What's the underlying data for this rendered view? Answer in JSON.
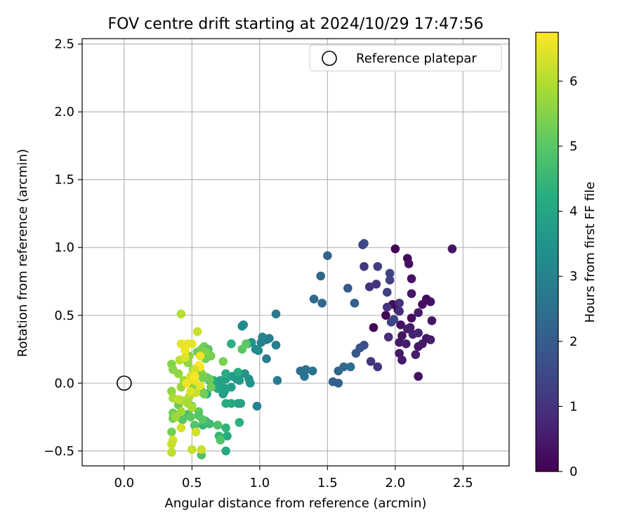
{
  "chart_data": {
    "type": "scatter",
    "title": "FOV centre drift starting at 2024/10/29 17:47:56",
    "xlabel": "Angular distance from reference (arcmin)",
    "ylabel": "Rotation from reference (arcmin)",
    "xlim": [
      -0.31,
      2.84
    ],
    "ylim": [
      -0.61,
      2.54
    ],
    "xticks": [
      0.0,
      0.5,
      1.0,
      1.5,
      2.0,
      2.5
    ],
    "xtick_labels": [
      "0.0",
      "0.5",
      "1.0",
      "1.5",
      "2.0",
      "2.5"
    ],
    "yticks": [
      -0.5,
      0.0,
      0.5,
      1.0,
      1.5,
      2.0,
      2.5
    ],
    "ytick_labels": [
      "−0.5",
      "0.0",
      "0.5",
      "1.0",
      "1.5",
      "2.0",
      "2.5"
    ],
    "grid": true,
    "legend": {
      "placement": "upper right",
      "entries": [
        "Reference platepar"
      ]
    },
    "reference_point": {
      "label": "Reference platepar",
      "x": 0.0,
      "y": 0.0
    },
    "colorbar": {
      "label": "Hours from first FF file",
      "colormap": "viridis",
      "range": [
        0,
        6.75
      ],
      "ticks": [
        0,
        1,
        2,
        3,
        4,
        5,
        6
      ],
      "tick_labels": [
        "0",
        "1",
        "2",
        "3",
        "4",
        "5",
        "6"
      ],
      "colors": [
        "#440154",
        "#472c7a",
        "#3b518b",
        "#2c718e",
        "#21908d",
        "#27ad81",
        "#5cc863",
        "#aadc32",
        "#fde725"
      ]
    },
    "points": [
      {
        "x": 2.0,
        "y": 0.99,
        "h": 0.05
      },
      {
        "x": 2.09,
        "y": 0.92,
        "h": 0.15
      },
      {
        "x": 2.1,
        "y": 0.88,
        "h": 0.25
      },
      {
        "x": 2.12,
        "y": 0.77,
        "h": 0.3
      },
      {
        "x": 2.42,
        "y": 0.99,
        "h": 0.4
      },
      {
        "x": 2.12,
        "y": 0.66,
        "h": 0.45
      },
      {
        "x": 1.98,
        "y": 0.58,
        "h": 0.2
      },
      {
        "x": 2.02,
        "y": 0.54,
        "h": 0.1
      },
      {
        "x": 2.2,
        "y": 0.58,
        "h": 0.3
      },
      {
        "x": 2.26,
        "y": 0.6,
        "h": 0.35
      },
      {
        "x": 2.23,
        "y": 0.62,
        "h": 0.25
      },
      {
        "x": 2.17,
        "y": 0.52,
        "h": 0.5
      },
      {
        "x": 2.27,
        "y": 0.46,
        "h": 0.4
      },
      {
        "x": 2.12,
        "y": 0.48,
        "h": 0.2
      },
      {
        "x": 1.93,
        "y": 0.5,
        "h": 0.1
      },
      {
        "x": 1.84,
        "y": 0.41,
        "h": 0.05
      },
      {
        "x": 2.04,
        "y": 0.43,
        "h": 0.3
      },
      {
        "x": 2.11,
        "y": 0.41,
        "h": 0.45
      },
      {
        "x": 2.09,
        "y": 0.4,
        "h": 0.6
      },
      {
        "x": 2.03,
        "y": 0.3,
        "h": 0.5
      },
      {
        "x": 2.05,
        "y": 0.35,
        "h": 0.35
      },
      {
        "x": 2.13,
        "y": 0.36,
        "h": 0.65
      },
      {
        "x": 2.17,
        "y": 0.37,
        "h": 0.7
      },
      {
        "x": 2.08,
        "y": 0.29,
        "h": 0.55
      },
      {
        "x": 2.03,
        "y": 0.22,
        "h": 0.45
      },
      {
        "x": 2.05,
        "y": 0.17,
        "h": 0.5
      },
      {
        "x": 2.15,
        "y": 0.21,
        "h": 0.6
      },
      {
        "x": 2.2,
        "y": 0.29,
        "h": 0.5
      },
      {
        "x": 2.23,
        "y": 0.33,
        "h": 0.4
      },
      {
        "x": 2.26,
        "y": 0.32,
        "h": 0.55
      },
      {
        "x": 2.17,
        "y": 0.27,
        "h": 0.45
      },
      {
        "x": 2.17,
        "y": 0.05,
        "h": 0.3
      },
      {
        "x": 1.95,
        "y": 0.34,
        "h": 0.85
      },
      {
        "x": 1.76,
        "y": 1.02,
        "h": 1.3
      },
      {
        "x": 1.77,
        "y": 1.03,
        "h": 1.5
      },
      {
        "x": 1.77,
        "y": 0.86,
        "h": 1.1
      },
      {
        "x": 1.87,
        "y": 0.86,
        "h": 1.2
      },
      {
        "x": 1.96,
        "y": 0.81,
        "h": 1.4
      },
      {
        "x": 1.96,
        "y": 0.76,
        "h": 1.35
      },
      {
        "x": 1.81,
        "y": 0.71,
        "h": 1.0
      },
      {
        "x": 1.86,
        "y": 0.73,
        "h": 1.1
      },
      {
        "x": 1.94,
        "y": 0.67,
        "h": 1.3
      },
      {
        "x": 1.94,
        "y": 0.56,
        "h": 1.05
      },
      {
        "x": 2.03,
        "y": 0.59,
        "h": 0.95
      },
      {
        "x": 2.03,
        "y": 0.53,
        "h": 0.9
      },
      {
        "x": 1.99,
        "y": 0.47,
        "h": 1.5
      },
      {
        "x": 1.97,
        "y": 0.45,
        "h": 1.4
      },
      {
        "x": 1.82,
        "y": 0.16,
        "h": 1.1
      },
      {
        "x": 1.87,
        "y": 0.12,
        "h": 1.0
      },
      {
        "x": 1.77,
        "y": 0.28,
        "h": 1.6
      },
      {
        "x": 1.74,
        "y": 0.26,
        "h": 1.75
      },
      {
        "x": 1.71,
        "y": 0.22,
        "h": 1.9
      },
      {
        "x": 1.65,
        "y": 0.7,
        "h": 1.85
      },
      {
        "x": 1.7,
        "y": 0.59,
        "h": 2.05
      },
      {
        "x": 1.5,
        "y": 0.94,
        "h": 2.2
      },
      {
        "x": 1.45,
        "y": 0.79,
        "h": 2.25
      },
      {
        "x": 1.4,
        "y": 0.62,
        "h": 2.35
      },
      {
        "x": 1.46,
        "y": 0.59,
        "h": 2.3
      },
      {
        "x": 1.62,
        "y": 0.12,
        "h": 2.35
      },
      {
        "x": 1.67,
        "y": 0.12,
        "h": 2.45
      },
      {
        "x": 1.58,
        "y": 0.09,
        "h": 2.25
      },
      {
        "x": 1.54,
        "y": 0.01,
        "h": 2.15
      },
      {
        "x": 1.58,
        "y": 0.0,
        "h": 2.05
      },
      {
        "x": 1.3,
        "y": 0.09,
        "h": 2.5
      },
      {
        "x": 1.34,
        "y": 0.1,
        "h": 2.55
      },
      {
        "x": 1.39,
        "y": 0.09,
        "h": 2.6
      },
      {
        "x": 1.33,
        "y": 0.05,
        "h": 2.65
      },
      {
        "x": 1.12,
        "y": 0.51,
        "h": 2.75
      },
      {
        "x": 1.13,
        "y": 0.02,
        "h": 2.8
      },
      {
        "x": 1.12,
        "y": 0.28,
        "h": 2.85
      },
      {
        "x": 1.05,
        "y": 0.32,
        "h": 2.9
      },
      {
        "x": 1.07,
        "y": 0.33,
        "h": 2.95
      },
      {
        "x": 1.02,
        "y": 0.34,
        "h": 3.0
      },
      {
        "x": 1.05,
        "y": 0.18,
        "h": 2.9
      },
      {
        "x": 1.01,
        "y": 0.3,
        "h": 3.0
      },
      {
        "x": 0.87,
        "y": 0.42,
        "h": 3.1
      },
      {
        "x": 0.98,
        "y": -0.17,
        "h": 3.05
      },
      {
        "x": 0.88,
        "y": 0.43,
        "h": 3.3
      },
      {
        "x": 0.97,
        "y": 0.25,
        "h": 3.2
      },
      {
        "x": 0.99,
        "y": 0.24,
        "h": 3.3
      },
      {
        "x": 0.94,
        "y": 0.3,
        "h": 3.4
      },
      {
        "x": 0.91,
        "y": 0.29,
        "h": 3.5
      },
      {
        "x": 0.92,
        "y": 0.03,
        "h": 3.45
      },
      {
        "x": 0.93,
        "y": 0.0,
        "h": 3.5
      },
      {
        "x": 0.89,
        "y": 0.07,
        "h": 3.45
      },
      {
        "x": 0.85,
        "y": 0.07,
        "h": 3.55
      },
      {
        "x": 0.83,
        "y": 0.03,
        "h": 3.6
      },
      {
        "x": 0.85,
        "y": 0.02,
        "h": 3.65
      },
      {
        "x": 0.8,
        "y": 0.05,
        "h": 3.7
      },
      {
        "x": 0.75,
        "y": 0.03,
        "h": 3.8
      },
      {
        "x": 0.72,
        "y": -0.02,
        "h": 3.85
      },
      {
        "x": 0.74,
        "y": -0.06,
        "h": 3.9
      },
      {
        "x": 0.69,
        "y": -0.04,
        "h": 3.95
      },
      {
        "x": 0.73,
        "y": -0.08,
        "h": 3.85
      },
      {
        "x": 0.79,
        "y": -0.03,
        "h": 3.75
      },
      {
        "x": 0.75,
        "y": -0.04,
        "h": 3.9
      },
      {
        "x": 0.69,
        "y": -0.02,
        "h": 4.05
      },
      {
        "x": 0.66,
        "y": 0.02,
        "h": 4.1
      },
      {
        "x": 0.71,
        "y": 0.02,
        "h": 3.9
      },
      {
        "x": 0.75,
        "y": 0.07,
        "h": 4.15
      },
      {
        "x": 0.84,
        "y": 0.08,
        "h": 4.2
      },
      {
        "x": 0.79,
        "y": 0.29,
        "h": 4.3
      },
      {
        "x": 0.84,
        "y": -0.15,
        "h": 4.0
      },
      {
        "x": 0.86,
        "y": -0.15,
        "h": 3.9
      },
      {
        "x": 0.79,
        "y": -0.15,
        "h": 4.1
      },
      {
        "x": 0.75,
        "y": -0.15,
        "h": 4.2
      },
      {
        "x": 0.85,
        "y": -0.29,
        "h": 4.3
      },
      {
        "x": 0.75,
        "y": -0.33,
        "h": 4.4
      },
      {
        "x": 0.76,
        "y": -0.39,
        "h": 4.2
      },
      {
        "x": 0.75,
        "y": -0.5,
        "h": 4.1
      },
      {
        "x": 0.7,
        "y": -0.39,
        "h": 4.5
      },
      {
        "x": 0.61,
        "y": -0.08,
        "h": 4.2
      },
      {
        "x": 0.57,
        "y": -0.06,
        "h": 4.4
      },
      {
        "x": 0.61,
        "y": 0.04,
        "h": 4.6
      },
      {
        "x": 0.63,
        "y": 0.02,
        "h": 4.5
      },
      {
        "x": 0.56,
        "y": -0.02,
        "h": 4.7
      },
      {
        "x": 0.54,
        "y": -0.03,
        "h": 4.8
      },
      {
        "x": 0.6,
        "y": -0.28,
        "h": 4.4
      },
      {
        "x": 0.58,
        "y": -0.31,
        "h": 4.5
      },
      {
        "x": 0.63,
        "y": -0.3,
        "h": 4.6
      },
      {
        "x": 0.69,
        "y": -0.31,
        "h": 4.8
      },
      {
        "x": 0.71,
        "y": -0.42,
        "h": 4.9
      },
      {
        "x": 0.57,
        "y": -0.53,
        "h": 4.8
      },
      {
        "x": 0.47,
        "y": -0.23,
        "h": 4.7
      },
      {
        "x": 0.52,
        "y": -0.31,
        "h": 4.9
      },
      {
        "x": 0.43,
        "y": -0.27,
        "h": 5.0
      },
      {
        "x": 0.55,
        "y": -0.21,
        "h": 5.1
      },
      {
        "x": 0.5,
        "y": -0.17,
        "h": 5.2
      },
      {
        "x": 0.58,
        "y": -0.27,
        "h": 5.05
      },
      {
        "x": 0.4,
        "y": -0.16,
        "h": 5.2
      },
      {
        "x": 0.36,
        "y": -0.22,
        "h": 5.3
      },
      {
        "x": 0.36,
        "y": -0.26,
        "h": 5.25
      },
      {
        "x": 0.35,
        "y": -0.36,
        "h": 5.3
      },
      {
        "x": 0.49,
        "y": -0.25,
        "h": 5.1
      },
      {
        "x": 0.55,
        "y": -0.24,
        "h": 5.0
      },
      {
        "x": 0.54,
        "y": 0.23,
        "h": 5.2
      },
      {
        "x": 0.57,
        "y": 0.25,
        "h": 5.4
      },
      {
        "x": 0.59,
        "y": 0.27,
        "h": 5.3
      },
      {
        "x": 0.62,
        "y": 0.25,
        "h": 5.0
      },
      {
        "x": 0.61,
        "y": 0.2,
        "h": 5.1
      },
      {
        "x": 0.73,
        "y": 0.16,
        "h": 5.4
      },
      {
        "x": 0.87,
        "y": 0.25,
        "h": 5.0
      },
      {
        "x": 0.9,
        "y": 0.29,
        "h": 5.05
      },
      {
        "x": 0.64,
        "y": 0.2,
        "h": 5.35
      },
      {
        "x": 0.6,
        "y": 0.23,
        "h": 5.5
      },
      {
        "x": 0.6,
        "y": 0.18,
        "h": 5.3
      },
      {
        "x": 0.48,
        "y": 0.2,
        "h": 5.5
      },
      {
        "x": 0.47,
        "y": 0.15,
        "h": 5.6
      },
      {
        "x": 0.58,
        "y": 0.06,
        "h": 5.55
      },
      {
        "x": 0.51,
        "y": 0.1,
        "h": 5.45
      },
      {
        "x": 0.56,
        "y": 0.09,
        "h": 5.45
      },
      {
        "x": 0.58,
        "y": 0.04,
        "h": 5.35
      },
      {
        "x": 0.63,
        "y": 0.03,
        "h": 5.25
      },
      {
        "x": 0.64,
        "y": -0.03,
        "h": 5.25
      },
      {
        "x": 0.59,
        "y": -0.08,
        "h": 5.3
      },
      {
        "x": 0.5,
        "y": -0.01,
        "h": 5.6
      },
      {
        "x": 0.42,
        "y": -0.03,
        "h": 5.75
      },
      {
        "x": 0.44,
        "y": 0.02,
        "h": 5.8
      },
      {
        "x": 0.4,
        "y": 0.07,
        "h": 5.65
      },
      {
        "x": 0.35,
        "y": 0.14,
        "h": 5.5
      },
      {
        "x": 0.36,
        "y": 0.1,
        "h": 5.55
      },
      {
        "x": 0.35,
        "y": -0.06,
        "h": 5.6
      },
      {
        "x": 0.36,
        "y": -0.11,
        "h": 5.9
      },
      {
        "x": 0.43,
        "y": -0.13,
        "h": 6.0
      },
      {
        "x": 0.4,
        "y": -0.12,
        "h": 6.1
      },
      {
        "x": 0.48,
        "y": -0.1,
        "h": 6.0
      },
      {
        "x": 0.47,
        "y": -0.15,
        "h": 5.85
      },
      {
        "x": 0.5,
        "y": -0.18,
        "h": 5.9
      },
      {
        "x": 0.42,
        "y": -0.21,
        "h": 5.8
      },
      {
        "x": 0.38,
        "y": -0.25,
        "h": 5.75
      },
      {
        "x": 0.42,
        "y": -0.33,
        "h": 6.3
      },
      {
        "x": 0.36,
        "y": -0.42,
        "h": 6.35
      },
      {
        "x": 0.35,
        "y": -0.45,
        "h": 6.2
      },
      {
        "x": 0.35,
        "y": -0.51,
        "h": 6.1
      },
      {
        "x": 0.5,
        "y": -0.49,
        "h": 6.2
      },
      {
        "x": 0.57,
        "y": -0.49,
        "h": 6.25
      },
      {
        "x": 0.53,
        "y": -0.36,
        "h": 6.3
      },
      {
        "x": 0.53,
        "y": -0.07,
        "h": 6.2
      },
      {
        "x": 0.41,
        "y": 0.17,
        "h": 6.1
      },
      {
        "x": 0.42,
        "y": 0.51,
        "h": 6.0
      },
      {
        "x": 0.54,
        "y": 0.38,
        "h": 6.2
      },
      {
        "x": 0.42,
        "y": 0.29,
        "h": 6.5
      },
      {
        "x": 0.45,
        "y": 0.24,
        "h": 6.6
      },
      {
        "x": 0.47,
        "y": 0.29,
        "h": 6.55
      },
      {
        "x": 0.5,
        "y": 0.29,
        "h": 6.5
      },
      {
        "x": 0.45,
        "y": 0.19,
        "h": 6.45
      },
      {
        "x": 0.56,
        "y": 0.2,
        "h": 6.6
      },
      {
        "x": 0.56,
        "y": 0.12,
        "h": 6.7
      },
      {
        "x": 0.55,
        "y": 0.13,
        "h": 6.75
      },
      {
        "x": 0.52,
        "y": 0.1,
        "h": 6.3
      },
      {
        "x": 0.49,
        "y": 0.05,
        "h": 6.4
      },
      {
        "x": 0.52,
        "y": 0.02,
        "h": 6.55
      },
      {
        "x": 0.56,
        "y": -0.02,
        "h": 6.5
      },
      {
        "x": 0.52,
        "y": 0.05,
        "h": 6.7
      },
      {
        "x": 0.46,
        "y": 0.0,
        "h": 6.6
      },
      {
        "x": 0.49,
        "y": -0.06,
        "h": 6.4
      }
    ]
  }
}
